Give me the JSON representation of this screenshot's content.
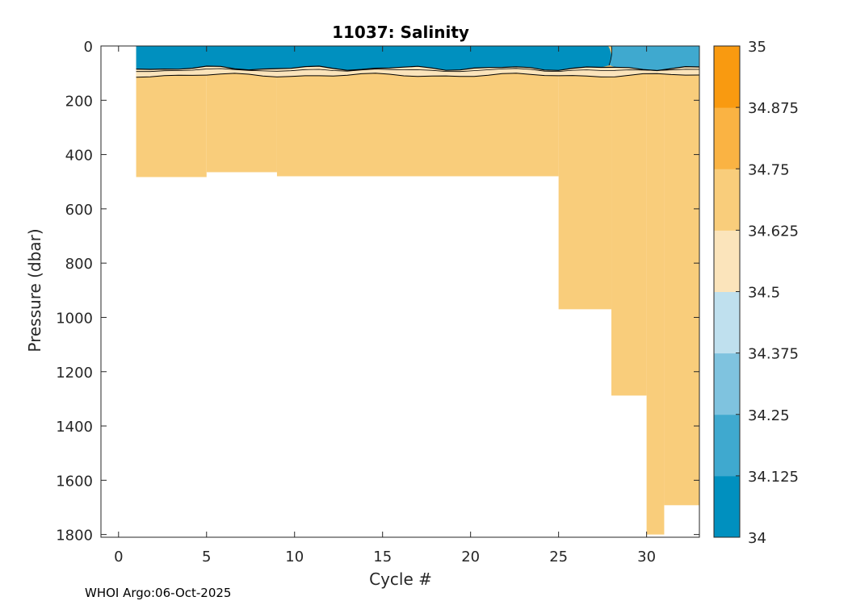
{
  "chart_data": {
    "type": "heatmap",
    "title": "11037:  Salinity",
    "xlabel": "Cycle #",
    "ylabel": "Pressure (dbar)",
    "xlim": [
      -1,
      33
    ],
    "ylim": [
      1810,
      0
    ],
    "y_reversed": true,
    "xticks": [
      0,
      5,
      10,
      15,
      20,
      25,
      30
    ],
    "yticks": [
      0,
      200,
      400,
      600,
      800,
      1000,
      1200,
      1400,
      1600,
      1800
    ],
    "grid": false,
    "colorbar": {
      "ticks": [
        "34",
        "34.125",
        "34.25",
        "34.375",
        "34.5",
        "34.625",
        "34.75",
        "34.875",
        "35"
      ],
      "levels": [
        34,
        34.125,
        34.25,
        34.375,
        34.5,
        34.625,
        34.75,
        34.875,
        35
      ],
      "colors": [
        "#0090bf",
        "#3fa9cf",
        "#7fc3df",
        "#bfe0ee",
        "#fbe4bb",
        "#f9cd7b",
        "#fab343",
        "#f99a10"
      ]
    },
    "profile_max_depth": [
      {
        "cycle_start": 1,
        "cycle_end": 5,
        "pressure": 483
      },
      {
        "cycle_start": 5,
        "cycle_end": 9,
        "pressure": 465
      },
      {
        "cycle_start": 9,
        "cycle_end": 25,
        "pressure": 480
      },
      {
        "cycle_start": 25,
        "cycle_end": 28,
        "pressure": 970
      },
      {
        "cycle_start": 28,
        "cycle_end": 30,
        "pressure": 1288
      },
      {
        "cycle_start": 30,
        "cycle_end": 31,
        "pressure": 1800
      },
      {
        "cycle_start": 31,
        "cycle_end": 33,
        "pressure": 1692
      }
    ],
    "layers": [
      {
        "salinity_band": "34-34.125",
        "cycles": [
          1,
          28
        ],
        "pressure_range": [
          0,
          85
        ]
      },
      {
        "salinity_band": "34.125-34.25",
        "cycles": [
          28,
          33
        ],
        "pressure_range": [
          0,
          85
        ]
      },
      {
        "salinity_band": "34.5-34.625",
        "cycles": [
          1,
          33
        ],
        "pressure_range": [
          85,
          110
        ]
      },
      {
        "salinity_band": "34.625-34.75",
        "cycles": [
          1,
          33
        ],
        "pressure_range": [
          110,
          1800
        ]
      }
    ]
  },
  "footer": "WHOI Argo:06-Oct-2025"
}
